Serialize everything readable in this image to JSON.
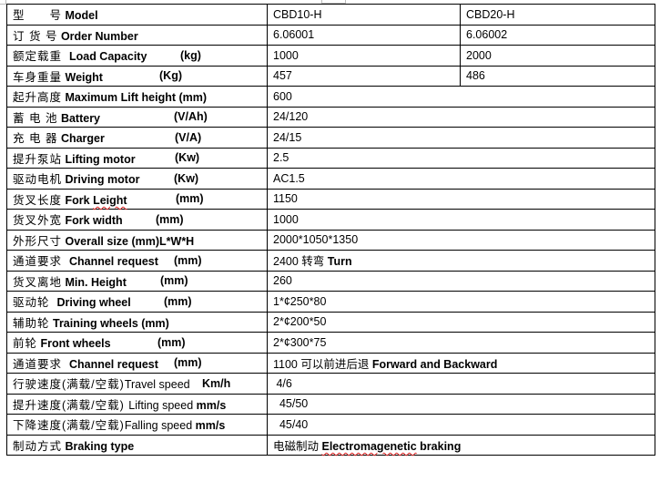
{
  "rows": [
    {
      "cn": "型　　号",
      "en": "Model",
      "unit": "",
      "values": [
        "CBD10-H",
        "CBD20-H"
      ]
    },
    {
      "cn": "订 货 号",
      "en": "Order Number",
      "unit": "",
      "values": [
        "6.06001",
        "6.06002"
      ]
    },
    {
      "cn": "额定载重 ",
      "en": "Load Capacity",
      "unit": "(kg)",
      "values": [
        "1000",
        "2000"
      ]
    },
    {
      "cn": "车身重量",
      "en": "Weight",
      "unit": "(Kg)",
      "values": [
        "457",
        "486"
      ]
    },
    {
      "cn": "起升高度",
      "en": "Maximum Lift height (mm)",
      "unit": "",
      "values": [
        "600"
      ]
    },
    {
      "cn": "蓄 电 池",
      "en": "Battery",
      "unit": "(V/Ah)",
      "values": [
        "24/120"
      ]
    },
    {
      "cn": "充 电 器",
      "en": "Charger",
      "unit": "(V/A)",
      "values": [
        "24/15"
      ]
    },
    {
      "cn": "提升泵站",
      "en": "Lifting motor",
      "unit": "(Kw)",
      "values": [
        "2.5"
      ]
    },
    {
      "cn": "驱动电机",
      "en": "Driving motor",
      "unit": "(Kw)",
      "values": [
        "AC1.5"
      ]
    },
    {
      "cn": "货叉长度",
      "en": "Fork Leight",
      "unit": "(mm)",
      "values": [
        "1150"
      ]
    },
    {
      "cn": "货叉外宽",
      "en": "Fork width",
      "unit": "(mm)",
      "values": [
        "1000"
      ]
    },
    {
      "cn": "外形尺寸",
      "en": "Overall size (mm)L*W*H",
      "unit": "",
      "values": [
        "2000*1050*1350"
      ]
    },
    {
      "cn": "通道要求 ",
      "en": "Channel request",
      "unit": "(mm)",
      "values": [
        "2400 转弯 Turn"
      ]
    },
    {
      "cn": "货叉离地",
      "en": "Min. Height",
      "unit": "(mm)",
      "values": [
        "260"
      ]
    },
    {
      "cn": "驱动轮 ",
      "en": "Driving wheel",
      "unit": "(mm)",
      "values": [
        "1*¢250*80"
      ]
    },
    {
      "cn": "辅助轮",
      "en": "Training wheels (mm)",
      "unit": "",
      "values": [
        "2*¢200*50"
      ]
    },
    {
      "cn": "前轮",
      "en": "Front wheels",
      "unit": "(mm)",
      "values": [
        "2*¢300*75"
      ]
    },
    {
      "cn": "通道要求 ",
      "en": "Channel request",
      "unit": "(mm)",
      "values": [
        "1100 可以前进后退 Forward and Backward"
      ]
    },
    {
      "cn": "行驶速度(满载/空载)",
      "en": "Travel speed",
      "unit": "Km/h",
      "values": [
        " 4/6"
      ]
    },
    {
      "cn": "提升速度(满载/空载) ",
      "en": "Lifting speed",
      "unit": "mm/s",
      "values": [
        "  45/50"
      ]
    },
    {
      "cn": "下降速度(满载/空载)",
      "en": "Falling speed",
      "unit": "mm/s",
      "values": [
        "  45/40"
      ]
    },
    {
      "cn": "制动方式",
      "en": "Braking type",
      "unit": "",
      "values": [
        "电磁制动 Electromagenetic braking"
      ]
    }
  ]
}
